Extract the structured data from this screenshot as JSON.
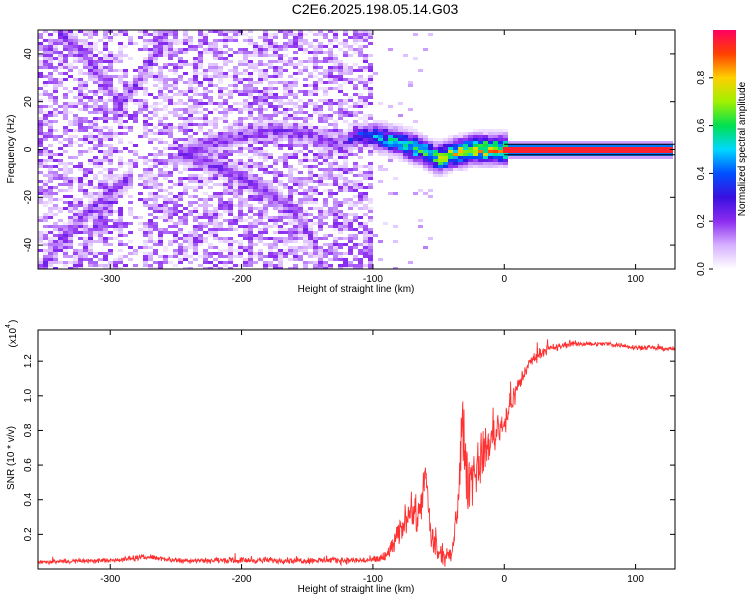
{
  "title": "C2E6.2025.198.05.14.G03",
  "chart_data": [
    {
      "type": "heatmap",
      "xlabel": "Height of straight line (km)",
      "ylabel": "Frequency (Hz)",
      "xlim": [
        -355,
        130
      ],
      "ylim": [
        -50,
        50
      ],
      "xticks": [
        -300,
        -200,
        -100,
        0,
        100
      ],
      "yticks": [
        -40,
        -20,
        0,
        20,
        40
      ],
      "colorbar": {
        "label": "Normalized spectral amplitude",
        "range": [
          0,
          1
        ],
        "ticks": [
          "0.0",
          "0.2",
          "0.4",
          "0.6",
          "0.8"
        ],
        "colors": [
          "#ffffff",
          "#d6b0ff",
          "#8c2cf0",
          "#3a10e0",
          "#0050ff",
          "#00d8ff",
          "#00e050",
          "#a0f000",
          "#ffd000",
          "#ff4000",
          "#ff0060"
        ]
      },
      "features": {
        "carrier_line": {
          "x_start": 0,
          "x_end": 130,
          "frequency": 0,
          "amplitude": 0.95
        },
        "main_arc": [
          [
            -245,
            -2
          ],
          [
            -225,
            2
          ],
          [
            -200,
            6
          ],
          [
            -175,
            8
          ],
          [
            -150,
            6
          ],
          [
            -125,
            2
          ],
          [
            -110,
            6
          ],
          [
            -95,
            5
          ],
          [
            -80,
            3
          ],
          [
            -65,
            0
          ],
          [
            -50,
            -4
          ],
          [
            -40,
            -2
          ],
          [
            -25,
            0
          ],
          [
            -10,
            0
          ],
          [
            0,
            0
          ]
        ],
        "lower_branch": [
          [
            -245,
            -2
          ],
          [
            -215,
            -8
          ],
          [
            -185,
            -16
          ],
          [
            -160,
            -26
          ],
          [
            -145,
            -38
          ],
          [
            -140,
            -48
          ]
        ],
        "left_upper_v": [
          [
            -335,
            48
          ],
          [
            -318,
            38
          ],
          [
            -300,
            26
          ],
          [
            -293,
            18
          ]
        ],
        "right_upper_v": [
          [
            -293,
            18
          ],
          [
            -282,
            26
          ],
          [
            -270,
            36
          ],
          [
            -258,
            48
          ]
        ],
        "left_lower": [
          [
            -352,
            -50
          ],
          [
            -338,
            -38
          ],
          [
            -320,
            -28
          ],
          [
            -300,
            -18
          ],
          [
            -285,
            -12
          ]
        ],
        "left_bottom": [
          [
            -325,
            -50
          ],
          [
            -318,
            -40
          ],
          [
            -310,
            -30
          ],
          [
            -300,
            -22
          ]
        ],
        "noise_region": [
          -355,
          -100
        ]
      }
    },
    {
      "type": "line",
      "xlabel": "Height of straight line (km)",
      "ylabel": "SNR (10 * v/v)",
      "y_scale_label": "(x10",
      "y_scale_exponent": "4",
      "xlim": [
        -355,
        130
      ],
      "ylim": [
        0,
        1.38
      ],
      "xticks": [
        -300,
        -200,
        -100,
        0,
        100
      ],
      "yticks": [
        "0.2",
        "0.4",
        "0.6",
        "0.8",
        "1.0",
        "1.2"
      ],
      "color": "#ff3030",
      "envelope": [
        [
          -355,
          0.04
        ],
        [
          -300,
          0.05
        ],
        [
          -270,
          0.07
        ],
        [
          -250,
          0.05
        ],
        [
          -200,
          0.05
        ],
        [
          -150,
          0.05
        ],
        [
          -100,
          0.05
        ],
        [
          -90,
          0.07
        ],
        [
          -80,
          0.2
        ],
        [
          -72,
          0.35
        ],
        [
          -66,
          0.28
        ],
        [
          -60,
          0.55
        ],
        [
          -56,
          0.2
        ],
        [
          -50,
          0.08
        ],
        [
          -40,
          0.07
        ],
        [
          -35,
          0.4
        ],
        [
          -32,
          0.85
        ],
        [
          -28,
          0.5
        ],
        [
          -20,
          0.6
        ],
        [
          -10,
          0.75
        ],
        [
          0,
          0.85
        ],
        [
          10,
          1.05
        ],
        [
          20,
          1.2
        ],
        [
          30,
          1.26
        ],
        [
          50,
          1.3
        ],
        [
          80,
          1.3
        ],
        [
          100,
          1.28
        ],
        [
          130,
          1.27
        ]
      ],
      "spike_amplitudes": [
        [
          -355,
          0.02
        ],
        [
          -100,
          0.03
        ],
        [
          -70,
          0.15
        ],
        [
          -58,
          0.15
        ],
        [
          -40,
          0.05
        ],
        [
          -30,
          0.3
        ],
        [
          -10,
          0.15
        ],
        [
          0,
          0.12
        ],
        [
          20,
          0.05
        ],
        [
          60,
          0.02
        ],
        [
          130,
          0.02
        ]
      ]
    }
  ]
}
